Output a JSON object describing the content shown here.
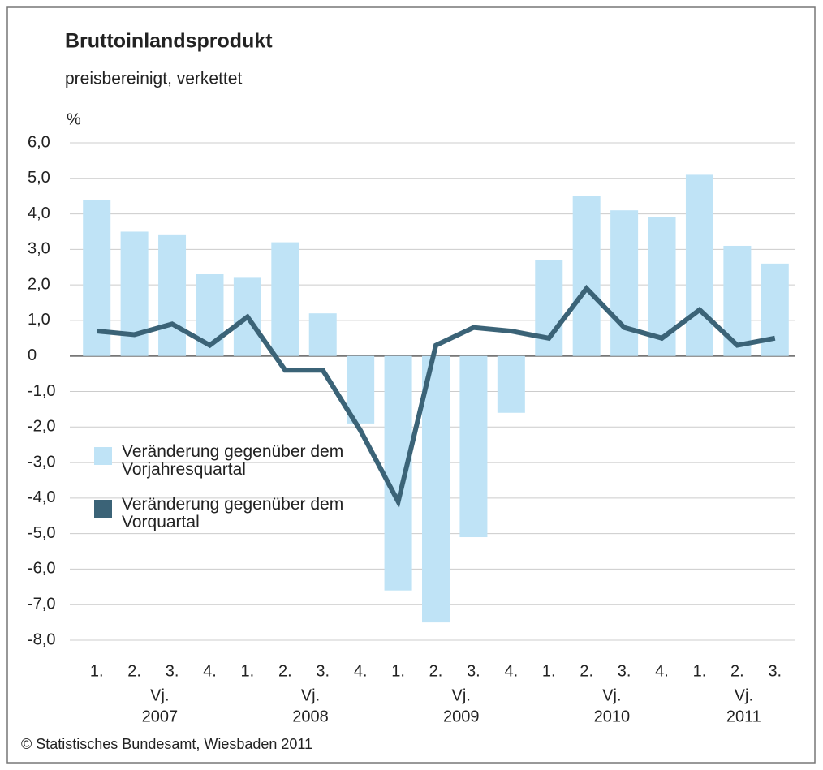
{
  "chart_data": {
    "type": "bar_line",
    "title": "Bruttoinlandsprodukt",
    "subtitle": "preisbereinigt, verkettet",
    "y_unit": "%",
    "source": "© Statistisches Bundesamt, Wiesbaden 2011",
    "categories": [
      "1.",
      "2.",
      "3.",
      "4.",
      "1.",
      "2.",
      "3.",
      "4.",
      "1.",
      "2.",
      "3.",
      "4.",
      "1.",
      "2.",
      "3.",
      "4.",
      "1.",
      "2.",
      "3."
    ],
    "groups": [
      {
        "prefix": "Vj.",
        "label": "2007",
        "size": 4
      },
      {
        "prefix": "Vj.",
        "label": "2008",
        "size": 4
      },
      {
        "prefix": "Vj.",
        "label": "2009",
        "size": 4
      },
      {
        "prefix": "Vj.",
        "label": "2010",
        "size": 4
      },
      {
        "prefix": "Vj.",
        "label": "2011",
        "size": 3
      }
    ],
    "series": [
      {
        "name": "Veränderung gegenüber dem Vorjahresquartal",
        "kind": "bar",
        "color": "#bfe3f6",
        "values": [
          4.4,
          3.5,
          3.4,
          2.3,
          2.2,
          3.2,
          1.2,
          -1.9,
          -6.6,
          -7.5,
          -5.1,
          -1.6,
          2.7,
          4.5,
          4.1,
          3.9,
          5.1,
          3.1,
          2.6
        ]
      },
      {
        "name": "Veränderung gegenüber dem Vorquartal",
        "kind": "line",
        "color": "#3b6377",
        "values": [
          0.7,
          0.6,
          0.9,
          0.3,
          1.1,
          -0.4,
          -0.4,
          -2.1,
          -4.1,
          0.3,
          0.8,
          0.7,
          0.5,
          1.9,
          0.8,
          0.5,
          1.3,
          0.3,
          0.5
        ]
      }
    ],
    "ylim": [
      -8,
      6
    ],
    "yticks": [
      {
        "value": 6,
        "label": "6,0"
      },
      {
        "value": 5,
        "label": "5,0"
      },
      {
        "value": 4,
        "label": "4,0"
      },
      {
        "value": 3,
        "label": "3,0"
      },
      {
        "value": 2,
        "label": "2,0"
      },
      {
        "value": 1,
        "label": "1,0"
      },
      0,
      {
        "value": -1,
        "label": "-1,0"
      },
      {
        "value": -2,
        "label": "-2,0"
      },
      {
        "value": -3,
        "label": "-3,0"
      },
      {
        "value": -4,
        "label": "-4,0"
      },
      {
        "value": -5,
        "label": "-5,0"
      },
      {
        "value": -6,
        "label": "-6,0"
      },
      {
        "value": -7,
        "label": "-7,0"
      },
      {
        "value": -8,
        "label": "-8,0"
      }
    ],
    "grid": true
  }
}
